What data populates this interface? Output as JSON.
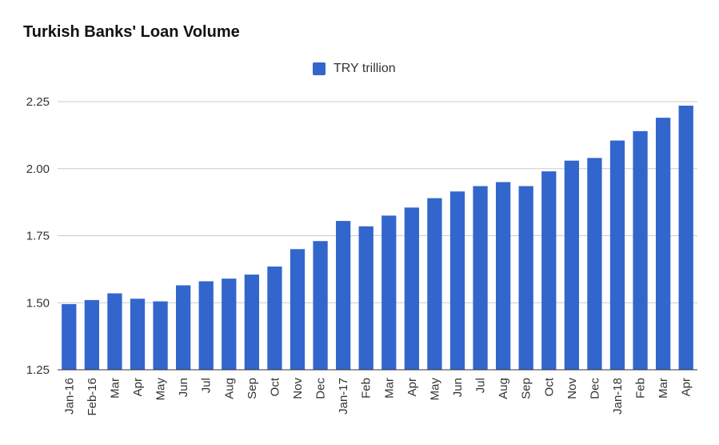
{
  "chart_data": {
    "type": "bar",
    "title": "Turkish Banks' Loan Volume",
    "xlabel": "",
    "ylabel": "",
    "ylim": [
      1.25,
      2.25
    ],
    "yticks": [
      "1.25",
      "1.50",
      "1.75",
      "2.00",
      "2.25"
    ],
    "grid": true,
    "legend_position": "top-center",
    "categories": [
      "Jan-16",
      "Feb-16",
      "Mar",
      "Apr",
      "May",
      "Jun",
      "Jul",
      "Aug",
      "Sep",
      "Oct",
      "Nov",
      "Dec",
      "Jan-17",
      "Feb",
      "Mar",
      "Apr",
      "May",
      "Jun",
      "Jul",
      "Aug",
      "Sep",
      "Oct",
      "Nov",
      "Dec",
      "Jan-18",
      "Feb",
      "Mar",
      "Apr"
    ],
    "series": [
      {
        "name": "TRY trillion",
        "color": "#3366cc",
        "values": [
          1.495,
          1.51,
          1.535,
          1.515,
          1.505,
          1.565,
          1.58,
          1.59,
          1.605,
          1.635,
          1.7,
          1.73,
          1.805,
          1.785,
          1.825,
          1.855,
          1.89,
          1.915,
          1.935,
          1.95,
          1.935,
          1.99,
          2.03,
          2.04,
          2.105,
          2.14,
          2.19,
          2.235
        ]
      }
    ]
  }
}
